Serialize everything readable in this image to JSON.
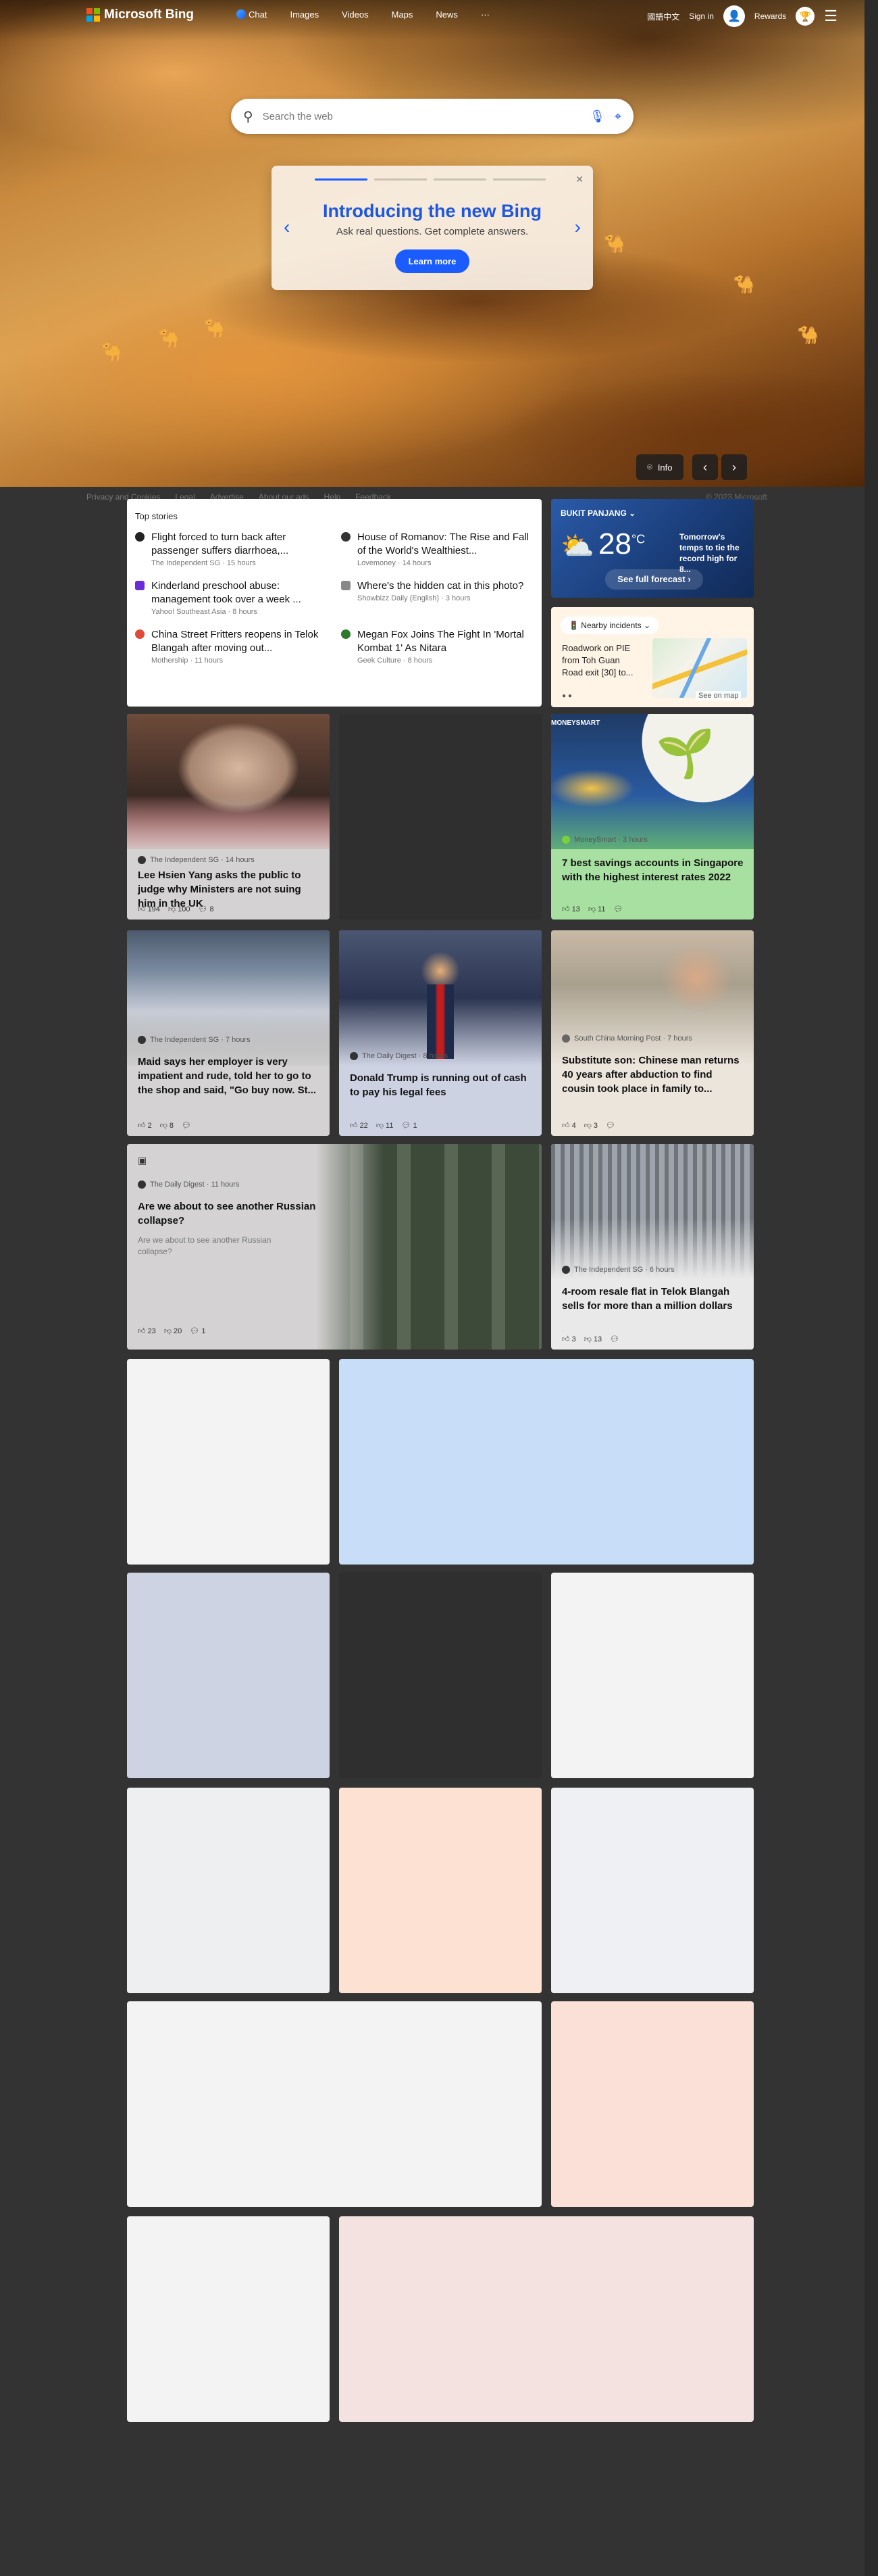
{
  "topbar": {
    "brand": "Microsoft Bing",
    "nav": [
      "Chat",
      "Images",
      "Videos",
      "Maps",
      "News",
      "···"
    ],
    "lang": "國語中文",
    "signin": "Sign in",
    "rewards": "Rewards"
  },
  "search": {
    "placeholder": "Search the web"
  },
  "promo": {
    "title": "Introducing the new Bing",
    "subtitle": "Ask real questions. Get complete answers.",
    "button": "Learn more"
  },
  "hero": {
    "info": "Info"
  },
  "footer": {
    "links": [
      "Privacy and Cookies",
      "Legal",
      "Advertise",
      "About our ads",
      "Help",
      "Feedback"
    ],
    "copyright": "© 2023 Microsoft"
  },
  "topstories": {
    "title": "Top stories",
    "items": [
      {
        "headline": "Flight forced to turn back after passenger suffers diarrhoea,...",
        "source": "The Independent SG · 15 hours",
        "color": "#222222"
      },
      {
        "headline": "House of Romanov: The Rise and Fall of the World's Wealthiest...",
        "source": "Lovemoney · 14 hours",
        "color": "#333333"
      },
      {
        "headline": "Kinderland preschool abuse: management took over a week ...",
        "source": "Yahoo! Southeast Asia · 8 hours",
        "color": "#6a2bd9"
      },
      {
        "headline": "Where's the hidden cat in this photo?",
        "source": "Showbizz Daily (English) · 3 hours",
        "color": "#888888"
      },
      {
        "headline": "China Street Fritters reopens in Telok Blangah after moving out...",
        "source": "Mothership · 11 hours",
        "color": "#e04a3a"
      },
      {
        "headline": "Megan Fox Joins The Fight In 'Mortal Kombat 1' As Nitara",
        "source": "Geek Culture · 8 hours",
        "color": "#2d7a2d"
      }
    ]
  },
  "weather": {
    "location": "BUKIT PANJANG",
    "temp": "28",
    "unit": "°C",
    "note": "Tomorrow's temps to tie the record high for 8...",
    "button": "See full forecast"
  },
  "traffic": {
    "button": "Nearby incidents",
    "text": "Roadwork on PIE from Toh Guan Road exit [30] to...",
    "map_label": "See on map"
  },
  "news": [
    {
      "source": "The Independent SG · 14 hours",
      "headline": "Lee Hsien Yang asks the public to judge why Ministers are not suing him in the UK",
      "likes": "194",
      "dislikes": "100",
      "comments": "8"
    },
    {
      "source": "MoneySmart · 3 hours",
      "headline": "7 best savings accounts in Singapore with the highest interest rates 2022",
      "likes": "13",
      "dislikes": "11",
      "comments": ""
    },
    {
      "source": "The Independent SG · 7 hours",
      "headline": "Maid says her employer is very impatient and rude, told her to go to the shop and said, \"Go buy now. St...",
      "likes": "2",
      "dislikes": "8",
      "comments": ""
    },
    {
      "source": "The Daily Digest · 8 hours",
      "headline": "Donald Trump is running out of cash to pay his legal fees",
      "likes": "22",
      "dislikes": "11",
      "comments": "1"
    },
    {
      "source": "South China Morning Post · 7 hours",
      "headline": "Substitute son: Chinese man returns 40 years after abduction to find cousin took place in family to...",
      "likes": "4",
      "dislikes": "3",
      "comments": ""
    },
    {
      "source": "The Daily Digest · 11 hours",
      "headline": "Are we about to see another Russian collapse?",
      "snippet": "Are we about to see another Russian collapse?",
      "likes": "23",
      "dislikes": "20",
      "comments": "1"
    },
    {
      "source": "The Independent SG · 6 hours",
      "headline": "4-room resale flat in Telok Blangah sells for more than a million dollars",
      "likes": "3",
      "dislikes": "13",
      "comments": ""
    }
  ],
  "moneysmart_label": "MONEYSMART",
  "colors": {
    "accent": "#1a5cff",
    "page_bg": "#333333"
  }
}
